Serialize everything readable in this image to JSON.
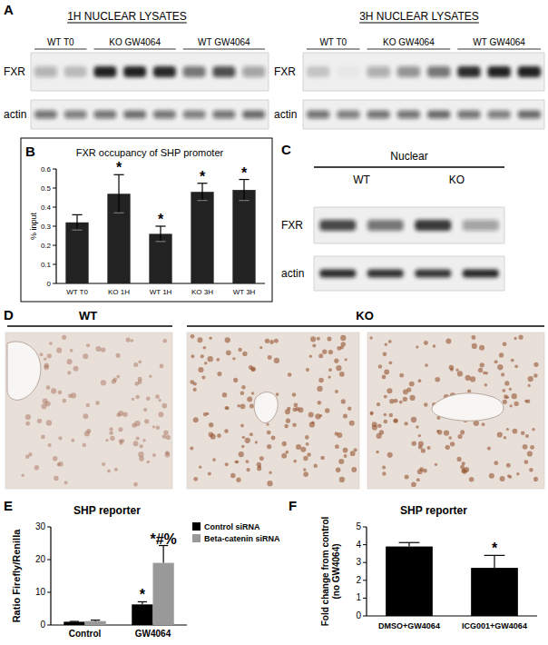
{
  "panel_letters": [
    "A",
    "B",
    "C",
    "D",
    "E",
    "F"
  ],
  "blots": [
    {
      "title": "1H NUCLEAR LYSATES",
      "lanes": [
        "WT T0",
        "KO GW4064",
        "WT GW4064"
      ],
      "rows": [
        "FXR",
        "actin"
      ]
    },
    {
      "title": "3H NUCLEAR LYSATES",
      "lanes": [
        "WT T0",
        "KO GW4064",
        "WT GW4064"
      ],
      "rows": [
        "FXR",
        "actin"
      ]
    },
    {
      "title": "Nuclear",
      "lanes": [
        "WT",
        "KO"
      ],
      "rows": [
        "FXR",
        "actin"
      ]
    }
  ],
  "histology": {
    "groups": [
      "WT",
      "KO"
    ]
  },
  "chart_data": [
    {
      "type": "bar",
      "title": "FXR occupancy of SHP promoter",
      "y_label": "% input",
      "categories": [
        "WT T0",
        "KO 1H",
        "WT 1H",
        "KO 3H",
        "WT 3H"
      ],
      "values": [
        0.32,
        0.47,
        0.26,
        0.48,
        0.49
      ],
      "errors": [
        0.04,
        0.1,
        0.04,
        0.045,
        0.055
      ],
      "annotations": [
        null,
        "*",
        "*",
        "*",
        "*"
      ],
      "color": "#222222",
      "ylim": [
        0,
        0.6
      ],
      "yticks": [
        0,
        0.1,
        0.2,
        0.3,
        0.4,
        0.5,
        0.6
      ]
    },
    {
      "type": "bar",
      "title": "SHP reporter",
      "y_label": "Ratio Firefly/Renilla",
      "categories": [
        "Control",
        "GW4064"
      ],
      "series": [
        {
          "name": "Control siRNA",
          "color": "#000000",
          "values": [
            1,
            6.3
          ],
          "errors": [
            0.1,
            0.8
          ],
          "annotations": [
            null,
            "*"
          ]
        },
        {
          "name": "Beta-catenin siRNA",
          "color": "#999999",
          "values": [
            1.2,
            19
          ],
          "errors": [
            0.3,
            5.3
          ],
          "annotations": [
            null,
            "*#%"
          ]
        }
      ],
      "legend": "right",
      "ylim": [
        0,
        30
      ],
      "yticks": [
        0,
        10,
        20,
        30
      ]
    },
    {
      "type": "bar",
      "title": "SHP reporter",
      "y_label": [
        "Fold change from control",
        "(no GW4064)"
      ],
      "categories": [
        "DMSO+GW4064",
        "ICG001+GW4064"
      ],
      "values": [
        3.9,
        2.7
      ],
      "errors": [
        0.22,
        0.7
      ],
      "annotations": [
        null,
        "*"
      ],
      "color": "#000000",
      "ylim": [
        0,
        5
      ],
      "yticks": [
        0,
        1,
        2,
        3,
        4,
        5
      ]
    }
  ]
}
